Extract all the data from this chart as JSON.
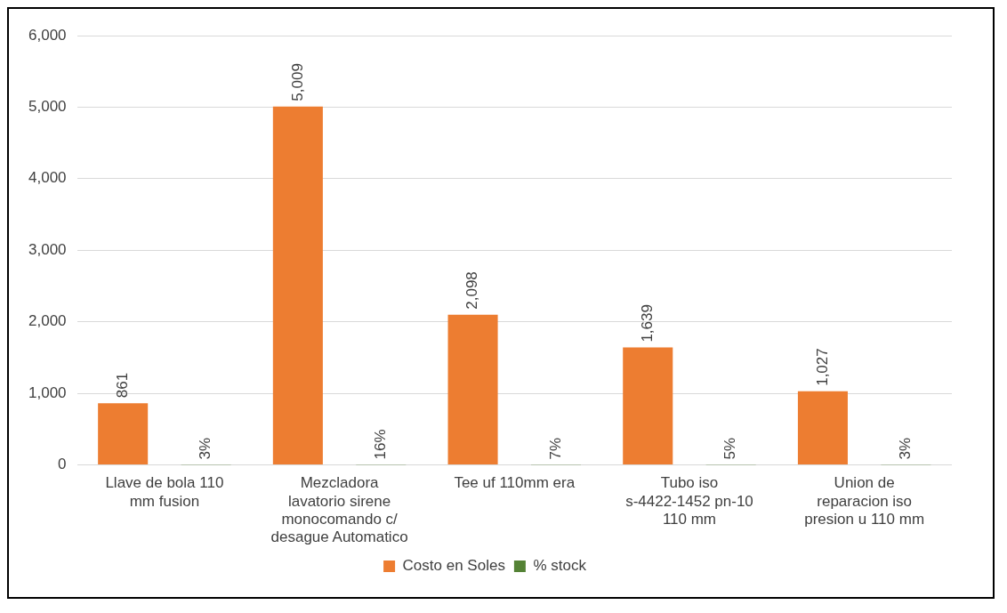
{
  "chart_data": {
    "type": "bar",
    "categories": [
      "Llave de bola 110 mm fusion",
      "Mezcladora lavatorio sirene monocomando c/ desague Automatico",
      "Tee uf 110mm era",
      "Tubo iso s-4422-1452 pn-10 110 mm",
      "Union de reparacion iso presion u 110 mm"
    ],
    "series": [
      {
        "name": "Costo en Soles",
        "color": "#ed7d31",
        "values": [
          861,
          5009,
          2098,
          1639,
          1027
        ],
        "value_labels": [
          "861",
          "5,009",
          "2,098",
          "1,639",
          "1,027"
        ]
      },
      {
        "name": "% stock",
        "color": "#548235",
        "values": [
          0.03,
          0.16,
          0.07,
          0.05,
          0.03
        ],
        "value_labels": [
          "3%",
          "16%",
          "7%",
          "5%",
          "3%"
        ]
      }
    ],
    "ylim": [
      0,
      6000
    ],
    "yticks": [
      {
        "value": 0,
        "label": "0"
      },
      {
        "value": 1000,
        "label": "1,000"
      },
      {
        "value": 2000,
        "label": "2,000"
      },
      {
        "value": 3000,
        "label": "3,000"
      },
      {
        "value": 4000,
        "label": "4,000"
      },
      {
        "value": 5000,
        "label": "5,000"
      },
      {
        "value": 6000,
        "label": "6,000"
      }
    ],
    "grid": "y",
    "legend": "bottom"
  }
}
